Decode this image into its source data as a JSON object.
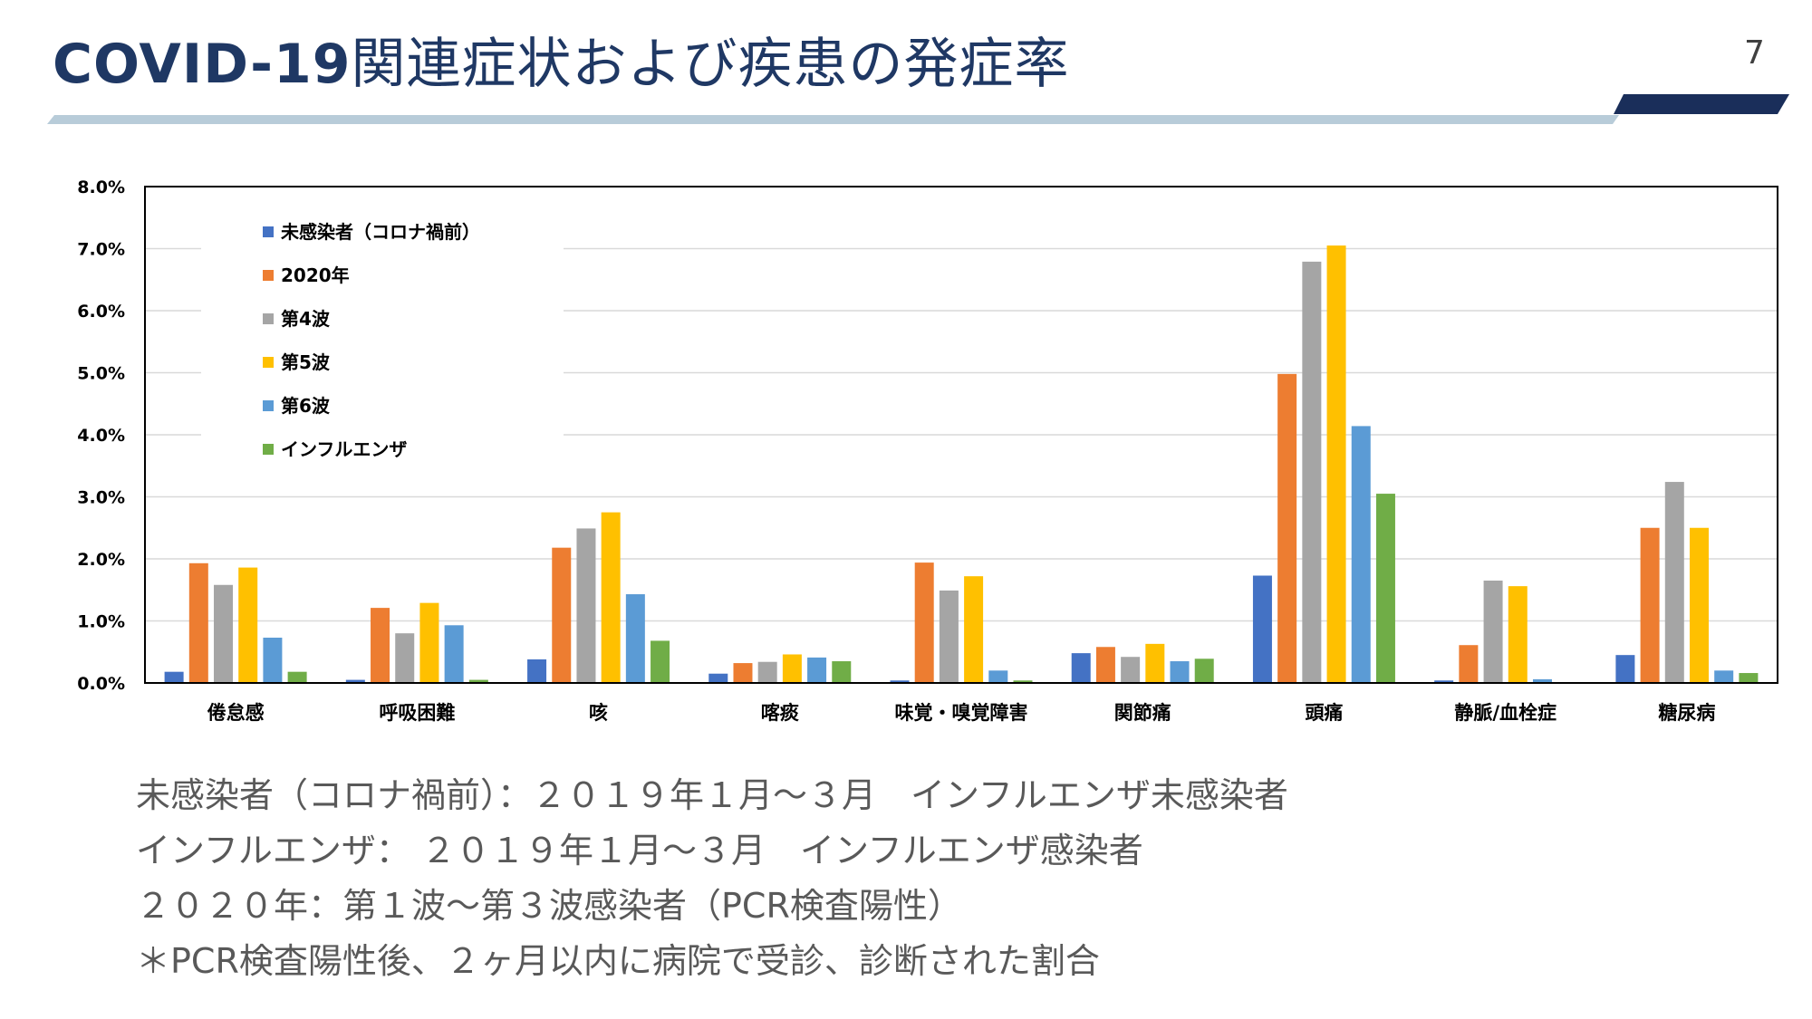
{
  "slide": {
    "title_strong": "COVID-19",
    "title_rest": "関連症状および疾患の発症率",
    "page_number": "7"
  },
  "colors": {
    "title": "#1f3864",
    "rule_light": "#b8ccd9",
    "rule_dark": "#1a2e5a",
    "note_text": "#595959"
  },
  "chart_data": {
    "type": "bar",
    "title": "",
    "xlabel": "",
    "ylabel": "",
    "ylim": [
      0,
      0.08
    ],
    "yticks": [
      "0.0%",
      "1.0%",
      "2.0%",
      "3.0%",
      "4.0%",
      "5.0%",
      "6.0%",
      "7.0%",
      "8.0%"
    ],
    "grid": true,
    "legend_position": "top-left",
    "categories": [
      "倦怠感",
      "呼吸困難",
      "咳",
      "喀痰",
      "味覚・嗅覚障害",
      "関節痛",
      "頭痛",
      "静脈/血栓症",
      "糖尿病"
    ],
    "series": [
      {
        "name": "未感染者（コロナ禍前）",
        "color": "#4472c4",
        "values": [
          0.0018,
          0.0005,
          0.0038,
          0.0015,
          0.0004,
          0.0048,
          0.0173,
          0.0004,
          0.0045
        ]
      },
      {
        "name": "2020年",
        "color": "#ed7d31",
        "values": [
          0.0193,
          0.0121,
          0.0218,
          0.0032,
          0.0194,
          0.0058,
          0.0498,
          0.0061,
          0.025
        ]
      },
      {
        "name": "第4波",
        "color": "#a5a5a5",
        "values": [
          0.0158,
          0.008,
          0.0249,
          0.0034,
          0.0149,
          0.0042,
          0.0679,
          0.0165,
          0.0324
        ]
      },
      {
        "name": "第5波",
        "color": "#ffc000",
        "values": [
          0.0186,
          0.0129,
          0.0275,
          0.0046,
          0.0172,
          0.0063,
          0.0705,
          0.0156,
          0.025
        ]
      },
      {
        "name": "第6波",
        "color": "#5b9bd5",
        "values": [
          0.0073,
          0.0093,
          0.0143,
          0.0041,
          0.002,
          0.0035,
          0.0414,
          0.0006,
          0.002
        ]
      },
      {
        "name": "インフルエンザ",
        "color": "#70ad47",
        "values": [
          0.0018,
          0.0005,
          0.0068,
          0.0035,
          0.0004,
          0.0039,
          0.0305,
          0.0,
          0.0016
        ]
      }
    ]
  },
  "notes": [
    "未感染者（コロナ禍前）：２０１９年１月～３月　インフルエンザ未感染者",
    "インフルエンザ：  ２０１９年１月～３月　インフルエンザ感染者",
    "２０２０年：第１波～第３波感染者（PCR検査陽性）",
    "＊PCR検査陽性後、２ヶ月以内に病院で受診、診断された割合"
  ]
}
